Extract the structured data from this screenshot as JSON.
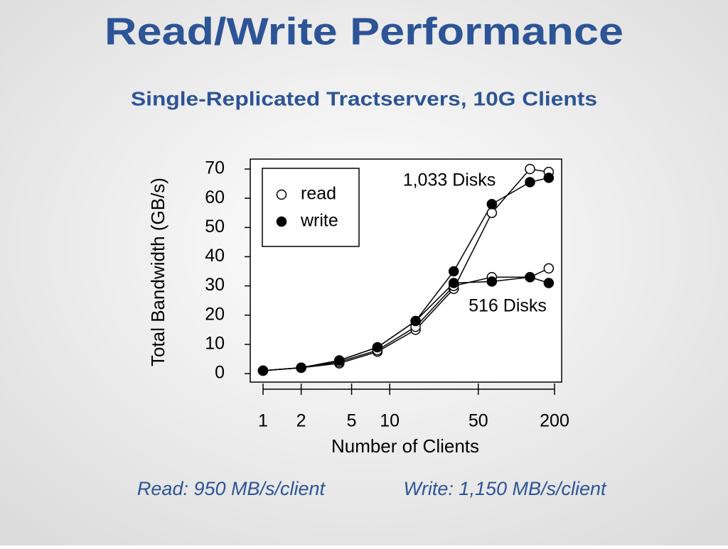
{
  "chart_data": {
    "type": "line",
    "title": "Read/Write Performance",
    "subtitle": "Single-Replicated Tractservers, 10G Clients",
    "x_label": "Number of Clients",
    "y_label": "Total Bandwidth (GB/s)",
    "log_x": true,
    "x": [
      1,
      2,
      4,
      8,
      16,
      32,
      64,
      128,
      180
    ],
    "xlim": [
      1,
      200
    ],
    "xticks": [
      1,
      2,
      5,
      10,
      50,
      200
    ],
    "ylim": [
      0,
      70
    ],
    "yticks": [
      0,
      10,
      20,
      30,
      40,
      50,
      60,
      70
    ],
    "color": "#000000",
    "legend": "upper left",
    "groups": [
      {
        "label": "1,033 Disks",
        "series": [
          {
            "name": "read",
            "marker": "open",
            "values": [
              1,
              2,
              3.5,
              7.5,
              15,
              29,
              55,
              70,
              69
            ]
          },
          {
            "name": "write",
            "marker": "filled",
            "values": [
              1,
              2,
              4.5,
              9,
              18,
              35,
              58,
              65.5,
              67
            ]
          }
        ]
      },
      {
        "label": "516 Disks",
        "series": [
          {
            "name": "read",
            "marker": "open",
            "values": [
              1,
              2,
              4,
              8,
              16,
              30,
              33,
              33,
              36
            ]
          },
          {
            "name": "write",
            "marker": "filled",
            "values": [
              1,
              2,
              4.5,
              9,
              18,
              31,
              31.5,
              33,
              31
            ]
          }
        ]
      }
    ],
    "footer": [
      "Read: 950 MB/s/client",
      "Write: 1,150 MB/s/client"
    ]
  }
}
